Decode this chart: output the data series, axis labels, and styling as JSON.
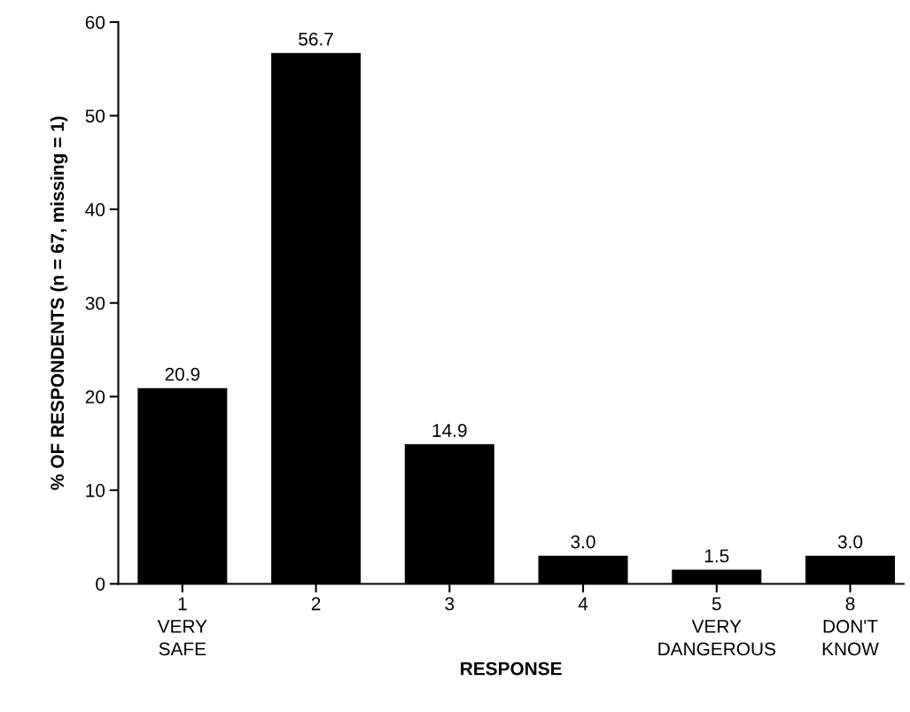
{
  "chart_data": {
    "type": "bar",
    "xlabel": "RESPONSE",
    "ylabel": "% OF RESPONDENTS (n = 67, missing = 1)",
    "categories": [
      "1\nVERY\nSAFE",
      "2",
      "3",
      "4",
      "5\nVERY\nDANGEROUS",
      "8\nDON'T\nKNOW"
    ],
    "values": [
      20.9,
      56.7,
      14.9,
      3.0,
      1.5,
      3.0
    ],
    "color": "#000000",
    "value_labels": [
      "20.9",
      "56.7",
      "14.9",
      "3.0",
      "1.5",
      "3.0"
    ],
    "ylim": [
      0,
      60
    ],
    "yticks": [
      0,
      10,
      20,
      30,
      40,
      50,
      60
    ],
    "grid": false,
    "legend": false
  }
}
